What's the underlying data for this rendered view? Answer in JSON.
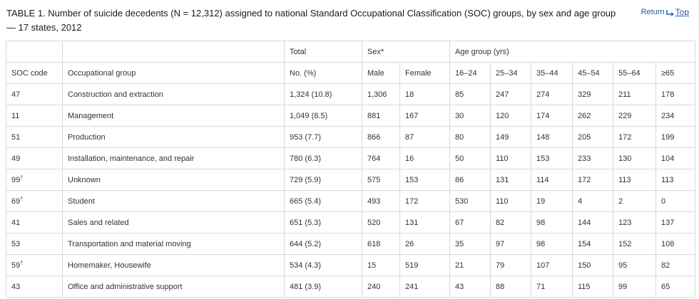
{
  "caption": "TABLE 1. Number of suicide decedents (N = 12,312) assigned to national Standard Occupational Classification (SOC) groups, by sex and age group — 17 states, 2012",
  "return_top": {
    "return_label": "Return",
    "top_label": "Top",
    "icon": "return-arrow-icon"
  },
  "table": {
    "header_top": {
      "total": "Total",
      "sex": "Sex*",
      "age_group": "Age group (yrs)"
    },
    "header_bottom": {
      "soc_code": "SOC code",
      "occupational_group": "Occupational group",
      "no_pct": "No. (%)",
      "male": "Male",
      "female": "Female",
      "ages": [
        "16–24",
        "25–34",
        "35–44",
        "45–54",
        "55–64",
        "≥65"
      ]
    },
    "rows": [
      {
        "code": "47",
        "mark": "",
        "group": "Construction and extraction",
        "total": "1,324 (10.8)",
        "male": "1,306",
        "female": "18",
        "ages": [
          "85",
          "247",
          "274",
          "329",
          "211",
          "178"
        ]
      },
      {
        "code": "11",
        "mark": "",
        "group": "Management",
        "total": "1,049 (8.5)",
        "male": "881",
        "female": "167",
        "ages": [
          "30",
          "120",
          "174",
          "262",
          "229",
          "234"
        ]
      },
      {
        "code": "51",
        "mark": "",
        "group": "Production",
        "total": "953 (7.7)",
        "male": "866",
        "female": "87",
        "ages": [
          "80",
          "149",
          "148",
          "205",
          "172",
          "199"
        ]
      },
      {
        "code": "49",
        "mark": "",
        "group": "Installation, maintenance, and repair",
        "total": "780 (6.3)",
        "male": "764",
        "female": "16",
        "ages": [
          "50",
          "110",
          "153",
          "233",
          "130",
          "104"
        ]
      },
      {
        "code": "99",
        "mark": "†",
        "group": "Unknown",
        "total": "729 (5.9)",
        "male": "575",
        "female": "153",
        "ages": [
          "86",
          "131",
          "114",
          "172",
          "113",
          "113"
        ]
      },
      {
        "code": "69",
        "mark": "†",
        "group": "Student",
        "total": "665 (5.4)",
        "male": "493",
        "female": "172",
        "ages": [
          "530",
          "110",
          "19",
          "4",
          "2",
          "0"
        ]
      },
      {
        "code": "41",
        "mark": "",
        "group": "Sales and related",
        "total": "651 (5.3)",
        "male": "520",
        "female": "131",
        "ages": [
          "67",
          "82",
          "98",
          "144",
          "123",
          "137"
        ]
      },
      {
        "code": "53",
        "mark": "",
        "group": "Transportation and material moving",
        "total": "644 (5.2)",
        "male": "618",
        "female": "26",
        "ages": [
          "35",
          "97",
          "98",
          "154",
          "152",
          "108"
        ]
      },
      {
        "code": "59",
        "mark": "†",
        "group": "Homemaker, Housewife",
        "total": "534 (4.3)",
        "male": "15",
        "female": "519",
        "ages": [
          "21",
          "79",
          "107",
          "150",
          "95",
          "82"
        ]
      },
      {
        "code": "43",
        "mark": "",
        "group": "Office and administrative support",
        "total": "481 (3.9)",
        "male": "240",
        "female": "241",
        "ages": [
          "43",
          "88",
          "71",
          "115",
          "99",
          "65"
        ]
      }
    ]
  }
}
